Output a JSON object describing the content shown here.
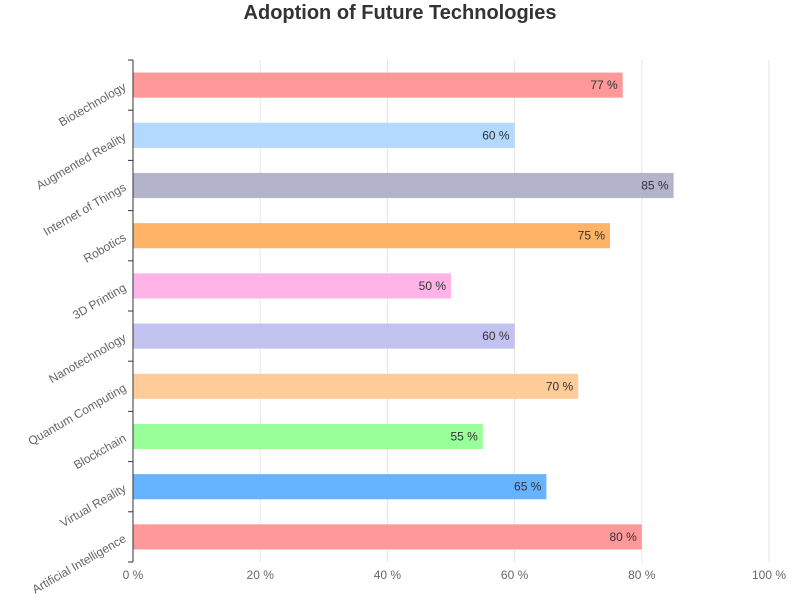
{
  "chart_data": {
    "type": "bar",
    "orientation": "horizontal",
    "title": "Adoption of Future Technologies",
    "categories": [
      "Artificial Intelligence",
      "Virtual Reality",
      "Blockchain",
      "Quantum Computing",
      "Nanotechnology",
      "3D Printing",
      "Robotics",
      "Internet of Things",
      "Augmented Reality",
      "Biotechnology"
    ],
    "values": [
      80,
      65,
      55,
      70,
      60,
      50,
      75,
      85,
      60,
      77
    ],
    "colors": [
      "#ff9999",
      "#66b3ff",
      "#99ff99",
      "#ffcc99",
      "#c2c2f0",
      "#ffb3e6",
      "#ffb366",
      "#b3b3cc",
      "#b3d9ff",
      "#ff9999"
    ],
    "value_suffix": " %",
    "xlim": [
      0,
      100
    ],
    "xticks": [
      0,
      20,
      40,
      60,
      80,
      100
    ],
    "xtick_labels": [
      "0 %",
      "20 %",
      "40 %",
      "60 %",
      "80 %",
      "100 %"
    ],
    "grid": true,
    "xlabel": "",
    "ylabel": ""
  }
}
